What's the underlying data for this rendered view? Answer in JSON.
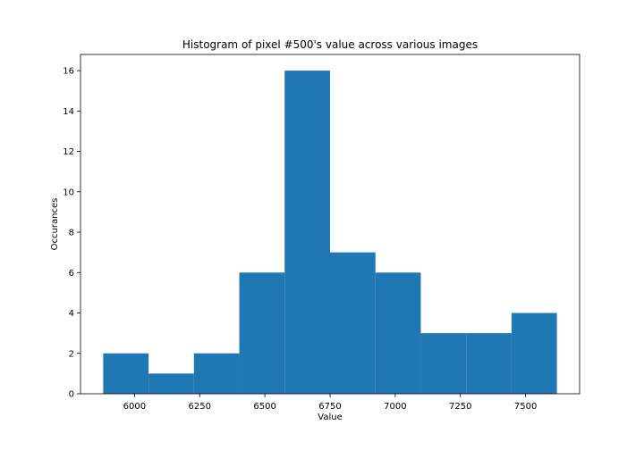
{
  "chart_data": {
    "type": "bar",
    "title": "Histogram of pixel #500's value across various images",
    "xlabel": "Value",
    "ylabel": "Occurances",
    "bins": [
      {
        "start": 5880,
        "end": 6054,
        "value": 2
      },
      {
        "start": 6054,
        "end": 6228,
        "value": 1
      },
      {
        "start": 6228,
        "end": 6402,
        "value": 2
      },
      {
        "start": 6402,
        "end": 6576,
        "value": 6
      },
      {
        "start": 6576,
        "end": 6750,
        "value": 16
      },
      {
        "start": 6750,
        "end": 6924,
        "value": 7
      },
      {
        "start": 6924,
        "end": 7098,
        "value": 6
      },
      {
        "start": 7098,
        "end": 7272,
        "value": 3
      },
      {
        "start": 7272,
        "end": 7446,
        "value": 3
      },
      {
        "start": 7446,
        "end": 7620,
        "value": 4
      }
    ],
    "xlim": [
      5793,
      7707
    ],
    "ylim": [
      0,
      16.8
    ],
    "xticks": [
      6000,
      6250,
      6500,
      6750,
      7000,
      7250,
      7500
    ],
    "yticks": [
      0,
      2,
      4,
      6,
      8,
      10,
      12,
      14,
      16
    ],
    "bar_color": "#1f77b4",
    "grid": false,
    "legend": "none"
  }
}
